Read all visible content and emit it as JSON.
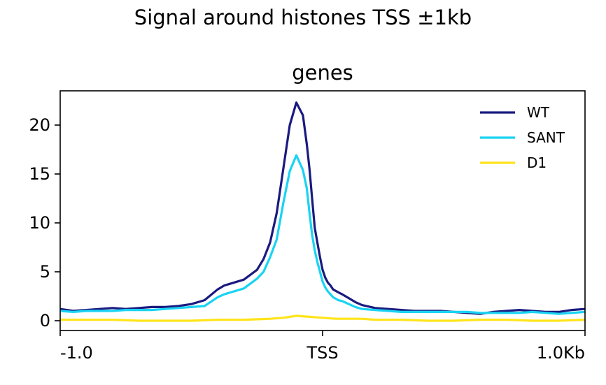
{
  "suptitle": "Signal around histones TSS ±1kb",
  "chart_data": {
    "type": "line",
    "title": "genes",
    "xlabel": "",
    "ylabel": "",
    "xlim": [
      -1.0,
      1.0
    ],
    "ylim": [
      -1.0,
      23.5
    ],
    "xticks": [
      {
        "value": -1.0,
        "label": "-1.0"
      },
      {
        "value": 0.0,
        "label": "TSS"
      },
      {
        "value": 1.0,
        "label": "1.0Kb"
      }
    ],
    "yticks": [
      {
        "value": 0,
        "label": "0"
      },
      {
        "value": 5,
        "label": "5"
      },
      {
        "value": 10,
        "label": "10"
      },
      {
        "value": 15,
        "label": "15"
      },
      {
        "value": 20,
        "label": "20"
      }
    ],
    "legend_position": "top-right",
    "grid": false,
    "series": [
      {
        "name": "WT",
        "color": "#1a1a80",
        "x": [
          -1.0,
          -0.95,
          -0.9,
          -0.85,
          -0.8,
          -0.75,
          -0.7,
          -0.65,
          -0.6,
          -0.55,
          -0.5,
          -0.45,
          -0.4,
          -0.375,
          -0.35,
          -0.3,
          -0.25,
          -0.225,
          -0.2,
          -0.175,
          -0.15,
          -0.125,
          -0.1,
          -0.075,
          -0.06,
          -0.05,
          -0.04,
          -0.03,
          -0.02,
          -0.01,
          0.0,
          0.01,
          0.02,
          0.03,
          0.04,
          0.06,
          0.075,
          0.1,
          0.125,
          0.15,
          0.2,
          0.25,
          0.3,
          0.35,
          0.4,
          0.45,
          0.5,
          0.55,
          0.6,
          0.65,
          0.7,
          0.75,
          0.8,
          0.85,
          0.9,
          0.95,
          1.0
        ],
        "values": [
          1.2,
          1.0,
          1.1,
          1.2,
          1.3,
          1.2,
          1.3,
          1.4,
          1.4,
          1.5,
          1.7,
          2.1,
          3.2,
          3.6,
          3.8,
          4.2,
          5.2,
          6.3,
          8.0,
          11.0,
          15.5,
          20.0,
          22.3,
          21.0,
          18.0,
          15.5,
          12.5,
          9.5,
          8.0,
          6.5,
          5.2,
          4.4,
          3.9,
          3.6,
          3.2,
          2.9,
          2.7,
          2.3,
          1.9,
          1.6,
          1.3,
          1.2,
          1.1,
          1.0,
          1.0,
          1.0,
          0.9,
          0.8,
          0.7,
          0.9,
          1.0,
          1.1,
          1.0,
          0.9,
          0.9,
          1.1,
          1.2
        ]
      },
      {
        "name": "SANT",
        "color": "#19d3f3",
        "x": [
          -1.0,
          -0.95,
          -0.9,
          -0.85,
          -0.8,
          -0.75,
          -0.7,
          -0.65,
          -0.6,
          -0.55,
          -0.5,
          -0.45,
          -0.4,
          -0.375,
          -0.35,
          -0.3,
          -0.25,
          -0.225,
          -0.2,
          -0.175,
          -0.15,
          -0.125,
          -0.1,
          -0.075,
          -0.06,
          -0.05,
          -0.04,
          -0.03,
          -0.02,
          -0.01,
          0.0,
          0.01,
          0.02,
          0.03,
          0.04,
          0.06,
          0.075,
          0.1,
          0.125,
          0.15,
          0.2,
          0.25,
          0.3,
          0.35,
          0.4,
          0.45,
          0.5,
          0.55,
          0.6,
          0.65,
          0.7,
          0.75,
          0.8,
          0.85,
          0.9,
          0.95,
          1.0
        ],
        "values": [
          1.0,
          0.9,
          1.0,
          1.0,
          1.0,
          1.1,
          1.1,
          1.1,
          1.2,
          1.3,
          1.4,
          1.5,
          2.4,
          2.7,
          2.9,
          3.3,
          4.3,
          5.0,
          6.5,
          8.3,
          12.0,
          15.3,
          16.9,
          15.4,
          13.5,
          11.0,
          8.8,
          7.2,
          6.0,
          5.0,
          4.0,
          3.4,
          3.0,
          2.7,
          2.4,
          2.1,
          2.0,
          1.7,
          1.4,
          1.2,
          1.1,
          1.0,
          0.9,
          0.9,
          0.9,
          0.9,
          0.9,
          0.9,
          0.8,
          0.8,
          0.8,
          0.8,
          0.9,
          0.8,
          0.7,
          0.8,
          0.9
        ]
      },
      {
        "name": "D1",
        "color": "#ffe41a",
        "x": [
          -1.0,
          -0.9,
          -0.8,
          -0.7,
          -0.6,
          -0.5,
          -0.4,
          -0.3,
          -0.2,
          -0.15,
          -0.1,
          -0.05,
          0.0,
          0.05,
          0.1,
          0.15,
          0.2,
          0.3,
          0.4,
          0.5,
          0.6,
          0.7,
          0.8,
          0.9,
          1.0
        ],
        "values": [
          0.1,
          0.1,
          0.1,
          0.0,
          0.0,
          0.0,
          0.1,
          0.1,
          0.2,
          0.3,
          0.5,
          0.4,
          0.3,
          0.2,
          0.2,
          0.2,
          0.1,
          0.1,
          0.0,
          0.0,
          0.1,
          0.1,
          0.0,
          0.0,
          0.1
        ]
      }
    ]
  }
}
